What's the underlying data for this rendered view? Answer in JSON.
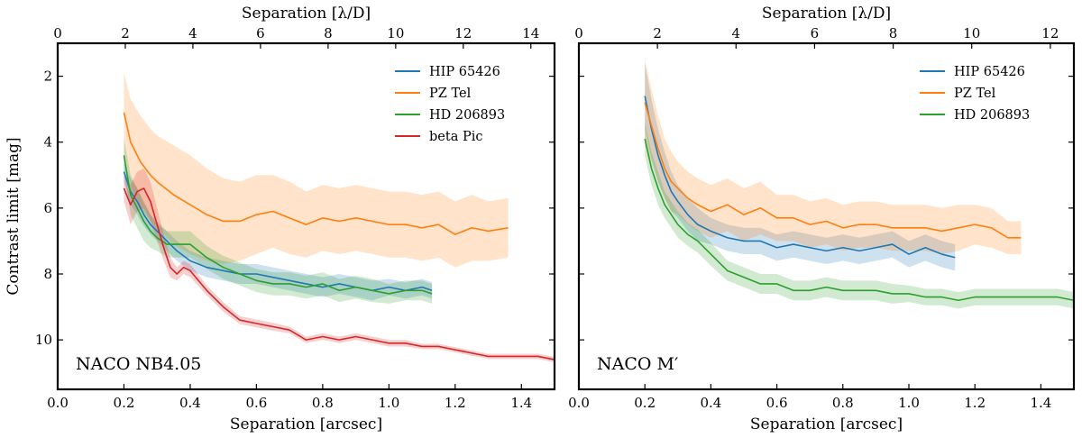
{
  "chart_data": [
    {
      "type": "line",
      "panel": "left",
      "annotation": "NACO NB4.05",
      "xlabel": "Separation [arcsec]",
      "ylabel": "Contrast limit [mag]",
      "top_xlabel": "Separation [λ/D]",
      "xlim": [
        0.0,
        1.5
      ],
      "ylim": [
        11.5,
        1.0
      ],
      "top_xlim": [
        0,
        14.7
      ],
      "x_ticks": [
        "0.0",
        "0.2",
        "0.4",
        "0.6",
        "0.8",
        "1.0",
        "1.2",
        "1.4"
      ],
      "y_ticks": [
        "2",
        "4",
        "6",
        "8",
        "10"
      ],
      "top_x_ticks": [
        "0",
        "2",
        "4",
        "6",
        "8",
        "10",
        "12",
        "14"
      ],
      "legend_position": "top-right",
      "series": [
        {
          "name": "HIP 65426",
          "color": "#1f77b4",
          "x": [
            0.2,
            0.22,
            0.24,
            0.26,
            0.28,
            0.3,
            0.33,
            0.36,
            0.4,
            0.45,
            0.5,
            0.55,
            0.6,
            0.65,
            0.7,
            0.75,
            0.8,
            0.85,
            0.9,
            0.95,
            1.0,
            1.05,
            1.1,
            1.13
          ],
          "y": [
            4.9,
            5.5,
            5.8,
            6.2,
            6.5,
            6.7,
            7.0,
            7.3,
            7.6,
            7.8,
            7.9,
            8.0,
            8.0,
            8.1,
            8.2,
            8.3,
            8.4,
            8.3,
            8.4,
            8.5,
            8.4,
            8.5,
            8.4,
            8.5
          ],
          "band": [
            0.3,
            0.4,
            0.4,
            0.35,
            0.3,
            0.3,
            0.3,
            0.3,
            0.3,
            0.3,
            0.3,
            0.3,
            0.3,
            0.3,
            0.3,
            0.3,
            0.3,
            0.3,
            0.3,
            0.3,
            0.25,
            0.25,
            0.25,
            0.25
          ]
        },
        {
          "name": "PZ Tel",
          "color": "#ff7f0e",
          "x": [
            0.2,
            0.22,
            0.25,
            0.28,
            0.3,
            0.35,
            0.4,
            0.45,
            0.5,
            0.55,
            0.6,
            0.65,
            0.7,
            0.75,
            0.8,
            0.85,
            0.9,
            0.95,
            1.0,
            1.05,
            1.1,
            1.15,
            1.2,
            1.25,
            1.3,
            1.36
          ],
          "y": [
            3.1,
            4.0,
            4.6,
            5.0,
            5.2,
            5.6,
            5.9,
            6.2,
            6.4,
            6.4,
            6.2,
            6.1,
            6.3,
            6.5,
            6.3,
            6.4,
            6.3,
            6.4,
            6.5,
            6.5,
            6.6,
            6.5,
            6.8,
            6.6,
            6.7,
            6.6
          ],
          "band": [
            1.2,
            1.3,
            1.4,
            1.4,
            1.4,
            1.5,
            1.5,
            1.4,
            1.3,
            1.2,
            1.2,
            1.1,
            1.1,
            1.0,
            1.0,
            1.0,
            1.0,
            1.0,
            1.0,
            1.0,
            1.0,
            1.0,
            1.0,
            1.0,
            0.9,
            0.9
          ]
        },
        {
          "name": "HD 206893",
          "color": "#2ca02c",
          "x": [
            0.2,
            0.22,
            0.24,
            0.26,
            0.28,
            0.3,
            0.33,
            0.36,
            0.4,
            0.45,
            0.5,
            0.55,
            0.6,
            0.65,
            0.7,
            0.75,
            0.8,
            0.85,
            0.9,
            0.95,
            1.0,
            1.05,
            1.1,
            1.13
          ],
          "y": [
            4.4,
            5.6,
            6.0,
            6.4,
            6.7,
            6.9,
            7.1,
            7.1,
            7.1,
            7.5,
            7.8,
            8.0,
            8.2,
            8.3,
            8.3,
            8.4,
            8.3,
            8.5,
            8.4,
            8.5,
            8.6,
            8.5,
            8.5,
            8.6
          ],
          "band": [
            0.5,
            0.6,
            0.6,
            0.6,
            0.5,
            0.4,
            0.4,
            0.4,
            0.4,
            0.35,
            0.35,
            0.35,
            0.35,
            0.35,
            0.35,
            0.35,
            0.35,
            0.35,
            0.35,
            0.35,
            0.3,
            0.3,
            0.3,
            0.3
          ]
        },
        {
          "name": "beta Pic",
          "color": "#d62728",
          "x": [
            0.2,
            0.22,
            0.24,
            0.26,
            0.28,
            0.3,
            0.32,
            0.34,
            0.36,
            0.38,
            0.4,
            0.45,
            0.5,
            0.55,
            0.6,
            0.65,
            0.7,
            0.75,
            0.8,
            0.85,
            0.9,
            0.95,
            1.0,
            1.05,
            1.1,
            1.15,
            1.2,
            1.25,
            1.3,
            1.35,
            1.4,
            1.45,
            1.5
          ],
          "y": [
            5.4,
            5.9,
            5.5,
            5.4,
            5.8,
            6.5,
            7.2,
            7.8,
            8.0,
            7.8,
            7.9,
            8.5,
            9.0,
            9.4,
            9.5,
            9.6,
            9.7,
            10.0,
            9.9,
            10.0,
            9.9,
            10.0,
            10.1,
            10.1,
            10.2,
            10.2,
            10.3,
            10.4,
            10.5,
            10.5,
            10.5,
            10.5,
            10.6
          ],
          "band": [
            0.4,
            0.6,
            0.6,
            0.6,
            0.6,
            0.5,
            0.4,
            0.3,
            0.2,
            0.2,
            0.2,
            0.15,
            0.15,
            0.12,
            0.12,
            0.12,
            0.1,
            0.1,
            0.1,
            0.1,
            0.1,
            0.1,
            0.1,
            0.1,
            0.08,
            0.08,
            0.08,
            0.08,
            0.08,
            0.08,
            0.08,
            0.08,
            0.08
          ]
        }
      ]
    },
    {
      "type": "line",
      "panel": "right",
      "annotation": "NACO M′",
      "xlabel": "Separation [arcsec]",
      "top_xlabel": "Separation [λ/D]",
      "xlim": [
        0.0,
        1.5
      ],
      "ylim": [
        11.5,
        1.0
      ],
      "top_xlim": [
        0,
        12.6
      ],
      "x_ticks": [
        "0.0",
        "0.2",
        "0.4",
        "0.6",
        "0.8",
        "1.0",
        "1.2",
        "1.4"
      ],
      "top_x_ticks": [
        "0",
        "2",
        "4",
        "6",
        "8",
        "10",
        "12"
      ],
      "legend_position": "top-right",
      "series": [
        {
          "name": "HIP 65426",
          "color": "#1f77b4",
          "x": [
            0.2,
            0.22,
            0.24,
            0.26,
            0.28,
            0.3,
            0.33,
            0.36,
            0.4,
            0.45,
            0.5,
            0.55,
            0.6,
            0.65,
            0.7,
            0.75,
            0.8,
            0.85,
            0.9,
            0.95,
            1.0,
            1.05,
            1.1,
            1.14
          ],
          "y": [
            2.6,
            3.6,
            4.4,
            5.0,
            5.5,
            5.8,
            6.2,
            6.5,
            6.7,
            6.9,
            7.0,
            7.0,
            7.2,
            7.1,
            7.2,
            7.3,
            7.2,
            7.3,
            7.2,
            7.1,
            7.4,
            7.2,
            7.4,
            7.5
          ],
          "band": [
            1.0,
            0.9,
            0.8,
            0.7,
            0.6,
            0.5,
            0.5,
            0.5,
            0.4,
            0.4,
            0.4,
            0.4,
            0.4,
            0.4,
            0.4,
            0.4,
            0.4,
            0.4,
            0.4,
            0.4,
            0.4,
            0.4,
            0.4,
            0.4
          ]
        },
        {
          "name": "PZ Tel",
          "color": "#ff7f0e",
          "x": [
            0.2,
            0.22,
            0.24,
            0.26,
            0.28,
            0.3,
            0.33,
            0.36,
            0.4,
            0.45,
            0.5,
            0.55,
            0.6,
            0.65,
            0.7,
            0.75,
            0.8,
            0.85,
            0.9,
            0.95,
            1.0,
            1.05,
            1.1,
            1.15,
            1.2,
            1.25,
            1.3,
            1.34
          ],
          "y": [
            2.8,
            3.5,
            4.2,
            4.8,
            5.2,
            5.4,
            5.7,
            5.9,
            6.1,
            5.9,
            6.2,
            6.0,
            6.3,
            6.3,
            6.5,
            6.4,
            6.6,
            6.5,
            6.5,
            6.6,
            6.6,
            6.6,
            6.7,
            6.6,
            6.5,
            6.6,
            6.9,
            6.9
          ],
          "band": [
            1.3,
            1.1,
            1.0,
            0.9,
            0.9,
            0.8,
            0.8,
            0.8,
            0.8,
            0.8,
            0.8,
            0.8,
            0.7,
            0.7,
            0.7,
            0.7,
            0.7,
            0.7,
            0.7,
            0.7,
            0.7,
            0.7,
            0.7,
            0.7,
            0.6,
            0.6,
            0.5,
            0.5
          ]
        },
        {
          "name": "HD 206893",
          "color": "#2ca02c",
          "x": [
            0.2,
            0.22,
            0.24,
            0.26,
            0.28,
            0.3,
            0.33,
            0.36,
            0.4,
            0.45,
            0.5,
            0.55,
            0.6,
            0.65,
            0.7,
            0.75,
            0.8,
            0.85,
            0.9,
            0.95,
            1.0,
            1.05,
            1.1,
            1.15,
            1.2,
            1.25,
            1.3,
            1.35,
            1.4,
            1.45,
            1.5
          ],
          "y": [
            3.9,
            4.8,
            5.4,
            5.9,
            6.2,
            6.5,
            6.8,
            7.0,
            7.4,
            7.9,
            8.1,
            8.3,
            8.3,
            8.5,
            8.5,
            8.4,
            8.5,
            8.5,
            8.5,
            8.6,
            8.6,
            8.7,
            8.7,
            8.8,
            8.7,
            8.7,
            8.7,
            8.7,
            8.7,
            8.7,
            8.8
          ],
          "band": [
            0.5,
            0.5,
            0.5,
            0.4,
            0.4,
            0.4,
            0.35,
            0.35,
            0.35,
            0.3,
            0.3,
            0.3,
            0.3,
            0.3,
            0.3,
            0.3,
            0.3,
            0.3,
            0.3,
            0.3,
            0.25,
            0.25,
            0.25,
            0.25,
            0.25,
            0.25,
            0.25,
            0.25,
            0.25,
            0.25,
            0.25
          ]
        }
      ]
    }
  ]
}
